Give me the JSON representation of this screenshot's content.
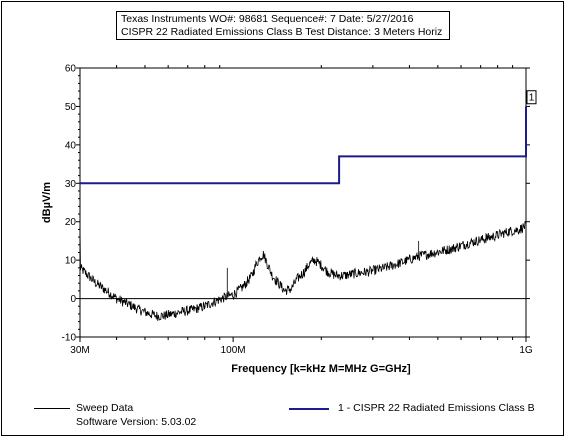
{
  "header": {
    "line1": "Texas Instruments WO#: 98681 Sequence#: 7 Date:  5/27/2016",
    "line2": "CISPR 22 Radiated Emissions Class B  Test Distance: 3 Meters  Horiz"
  },
  "legend": {
    "sweep_label": "Sweep Data",
    "software_version": "Software Version: 5.03.02",
    "limit_label": "1 - CISPR 22 Radiated Emissions Class B"
  },
  "chart_data": {
    "type": "line",
    "title": "",
    "xlabel": "Frequency [k=kHz M=MHz G=GHz]",
    "ylabel": "dBµV/m",
    "x_scale": "log",
    "xlim": [
      30,
      1000
    ],
    "ylim": [
      -10,
      60
    ],
    "x_ticks": [
      {
        "value": 30,
        "label": "30M"
      },
      {
        "value": 100,
        "label": "100M"
      },
      {
        "value": 1000,
        "label": "1G"
      }
    ],
    "y_ticks": [
      -10,
      0,
      10,
      20,
      30,
      40,
      50,
      60
    ],
    "grid": {
      "horizontal_at": [
        0
      ],
      "vertical": false
    },
    "series": [
      {
        "name": "Sweep Data",
        "color": "#000000",
        "points": [
          [
            30,
            8
          ],
          [
            32,
            6
          ],
          [
            34,
            4
          ],
          [
            37,
            2
          ],
          [
            40,
            0
          ],
          [
            44,
            -1.5
          ],
          [
            48,
            -3
          ],
          [
            52,
            -4
          ],
          [
            55,
            -4.5
          ],
          [
            58,
            -4.5
          ],
          [
            62,
            -4
          ],
          [
            66,
            -3.5
          ],
          [
            72,
            -3
          ],
          [
            80,
            -2
          ],
          [
            88,
            -0.5
          ],
          [
            95,
            0.5
          ],
          [
            100,
            1
          ],
          [
            108,
            3
          ],
          [
            116,
            6
          ],
          [
            120,
            9
          ],
          [
            124,
            11
          ],
          [
            127,
            11.5
          ],
          [
            131,
            9
          ],
          [
            136,
            6
          ],
          [
            143,
            4
          ],
          [
            150,
            2
          ],
          [
            158,
            2.5
          ],
          [
            165,
            5
          ],
          [
            175,
            7
          ],
          [
            182,
            9
          ],
          [
            190,
            10
          ],
          [
            198,
            9
          ],
          [
            210,
            7
          ],
          [
            225,
            6
          ],
          [
            240,
            6
          ],
          [
            260,
            6.5
          ],
          [
            290,
            7
          ],
          [
            330,
            8
          ],
          [
            380,
            9.5
          ],
          [
            430,
            11
          ],
          [
            490,
            12
          ],
          [
            560,
            13
          ],
          [
            640,
            14.5
          ],
          [
            720,
            15.5
          ],
          [
            800,
            16.5
          ],
          [
            880,
            17.5
          ],
          [
            950,
            18
          ],
          [
            1000,
            19
          ]
        ],
        "spikes": [
          [
            95.5,
            8
          ],
          [
            186,
            10.5
          ],
          [
            430,
            15
          ],
          [
            730,
            17
          ]
        ]
      },
      {
        "name": "1 - CISPR 22 Radiated Emissions Class B",
        "color": "#1c1c8c",
        "points": [
          [
            30,
            30
          ],
          [
            230,
            30
          ],
          [
            230,
            37
          ],
          [
            1000,
            37
          ],
          [
            1000,
            50
          ]
        ],
        "marker": {
          "x": 1000,
          "y": 52,
          "label": "1"
        }
      }
    ]
  }
}
